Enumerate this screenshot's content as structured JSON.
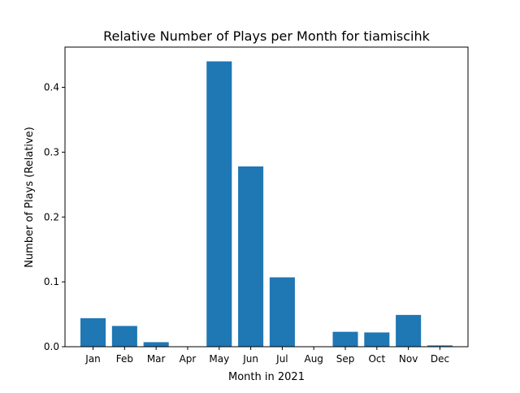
{
  "chart_data": {
    "type": "bar",
    "title": "Relative Number of Plays per Month for tiamiscihk",
    "xlabel": "Month in 2021",
    "ylabel": "Number of Plays (Relative)",
    "categories": [
      "Jan",
      "Feb",
      "Mar",
      "Apr",
      "May",
      "Jun",
      "Jul",
      "Aug",
      "Sep",
      "Oct",
      "Nov",
      "Dec"
    ],
    "values": [
      0.044,
      0.032,
      0.007,
      0.0,
      0.44,
      0.278,
      0.107,
      0.0,
      0.023,
      0.022,
      0.049,
      0.002
    ],
    "ylim": [
      0,
      0.462
    ],
    "yticks": [
      0.0,
      0.1,
      0.2,
      0.3,
      0.4
    ],
    "ytick_labels": [
      "0.0",
      "0.1",
      "0.2",
      "0.3",
      "0.4"
    ],
    "bar_color": "#1f77b4",
    "grid": false,
    "legend": "none"
  }
}
